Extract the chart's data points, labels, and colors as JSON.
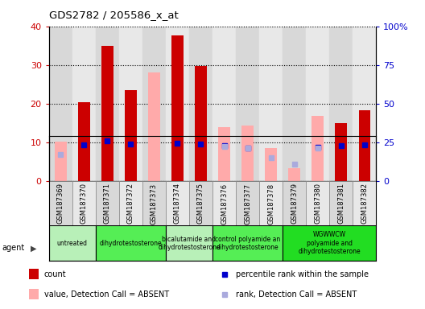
{
  "title": "GDS2782 / 205586_x_at",
  "samples": [
    "GSM187369",
    "GSM187370",
    "GSM187371",
    "GSM187372",
    "GSM187373",
    "GSM187374",
    "GSM187375",
    "GSM187376",
    "GSM187377",
    "GSM187378",
    "GSM187379",
    "GSM187380",
    "GSM187381",
    "GSM187382"
  ],
  "count": [
    null,
    20.3,
    35.0,
    23.5,
    null,
    37.7,
    29.8,
    null,
    null,
    null,
    null,
    null,
    15.0,
    18.2
  ],
  "percentile_rank": [
    null,
    23.0,
    26.0,
    24.0,
    null,
    24.5,
    24.0,
    22.5,
    21.0,
    null,
    null,
    21.5,
    22.5,
    23.5
  ],
  "value_absent": [
    10.2,
    null,
    null,
    null,
    28.0,
    null,
    null,
    13.8,
    14.2,
    8.5,
    3.2,
    16.8,
    null,
    null
  ],
  "rank_absent": [
    17.0,
    null,
    null,
    null,
    null,
    null,
    null,
    22.3,
    21.2,
    15.0,
    10.5,
    21.0,
    null,
    null
  ],
  "agent_groups": [
    {
      "label": "untreated",
      "start": 0,
      "end": 2,
      "color": "#aaffaa"
    },
    {
      "label": "dihydrotestosterone",
      "start": 2,
      "end": 5,
      "color": "#66ee66"
    },
    {
      "label": "bicalutamide and\ndihydrotestosterone",
      "start": 5,
      "end": 7,
      "color": "#aaffaa"
    },
    {
      "label": "control polyamide an\ndihydrotestosterone",
      "start": 7,
      "end": 10,
      "color": "#66ee66"
    },
    {
      "label": "WGWWCW\npolyamide and\ndihydrotestosterone",
      "start": 10,
      "end": 14,
      "color": "#44ee44"
    }
  ],
  "ylim_left": [
    0,
    40
  ],
  "ylim_right": [
    0,
    100
  ],
  "yticks_left": [
    0,
    10,
    20,
    30,
    40
  ],
  "yticks_right": [
    0,
    25,
    50,
    75,
    100
  ],
  "ytick_labels_right": [
    "0",
    "25",
    "50",
    "75",
    "100%"
  ],
  "color_count": "#cc0000",
  "color_rank": "#0000cc",
  "color_value_absent": "#ffaaaa",
  "color_rank_absent": "#aaaadd",
  "bar_width": 0.5,
  "figsize": [
    5.28,
    3.84
  ],
  "dpi": 100
}
